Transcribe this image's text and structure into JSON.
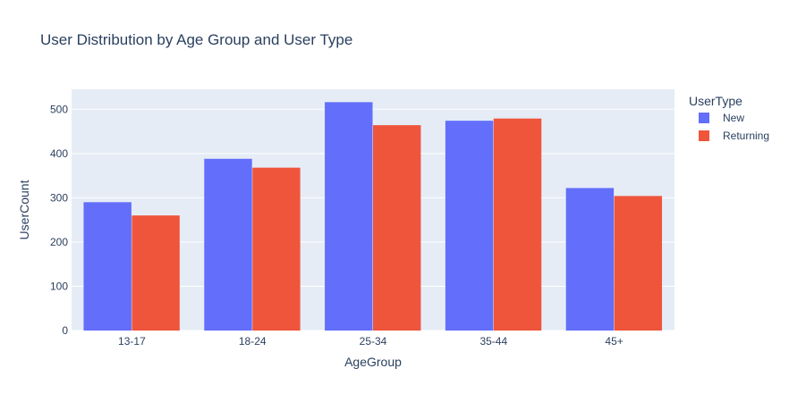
{
  "chart_data": {
    "type": "bar",
    "title": "User Distribution by Age Group and User Type",
    "xlabel": "AgeGroup",
    "ylabel": "UserCount",
    "categories": [
      "13-17",
      "18-24",
      "25-34",
      "35-44",
      "45+"
    ],
    "series": [
      {
        "name": "New",
        "values": [
          290,
          388,
          516,
          474,
          322
        ],
        "color": "#636efa"
      },
      {
        "name": "Returning",
        "values": [
          260,
          368,
          464,
          479,
          304
        ],
        "color": "#ef553b"
      }
    ],
    "ylim": [
      0,
      545
    ],
    "yticks": [
      0,
      100,
      200,
      300,
      400,
      500
    ],
    "grid": true,
    "legend": {
      "title": "UserType",
      "position": "top-right"
    },
    "colors": {
      "plot_background": "#e5ecf6",
      "grid": "#ffffff",
      "text": "#2a3f5f"
    }
  }
}
